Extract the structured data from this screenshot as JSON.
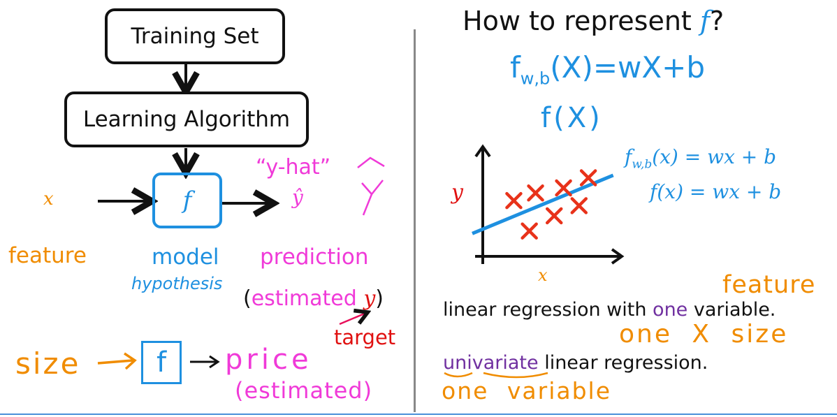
{
  "left": {
    "training_set": "Training Set",
    "learning_algorithm": "Learning Algorithm",
    "model_symbol": "f",
    "input_symbol": "x",
    "output_symbol": "ŷ",
    "y_hat_label": "“y-hat”",
    "feature_label": "feature",
    "model_label": "model",
    "hypothesis_label": "hypothesis",
    "prediction_label": "prediction",
    "estimated_open": "(",
    "estimated_word": "estimated",
    "estimated_y": "y",
    "estimated_close": ")",
    "target_label": "target",
    "size_label": "size",
    "size_f": "f",
    "price_label": "price",
    "price_estimated": "(estimated)"
  },
  "right": {
    "title_prefix": "How to represent ",
    "title_f": "f",
    "title_suffix": "?",
    "handwritten_formula": "f",
    "handwritten_sub": "w,b",
    "handwritten_rest": "(X)=wX+b",
    "handwritten_fx": "f(X)",
    "formula1_f": "f",
    "formula1_sub": "w,b",
    "formula1_rest": "(x) = wx + b",
    "formula2": "f(x) = wx + b",
    "plot_y_label": "y",
    "plot_x_label": "x",
    "feature_note": "feature",
    "linreg_pre": "linear regression with ",
    "linreg_one": "one",
    "linreg_post": " variable.",
    "one_x_size": "one X size",
    "univariate": "univariate",
    "univariate_post": " linear regression.",
    "one_variable": "one variable"
  },
  "colors": {
    "blue": "#1e90e0",
    "orange": "#f08c00",
    "magenta": "#f03ad8",
    "red": "#e01010",
    "purple": "#7030a0",
    "cross": "#e8321a"
  },
  "chart_data": {
    "type": "scatter",
    "x": [
      1.0,
      1.7,
      1.5,
      2.6,
      2.3,
      3.4,
      3.1
    ],
    "y": [
      2.2,
      2.5,
      1.0,
      2.7,
      1.6,
      3.1,
      2.0
    ],
    "fit_line": {
      "x": [
        0,
        4.2
      ],
      "y": [
        0.9,
        3.2
      ]
    },
    "xlabel": "x",
    "ylabel": "y",
    "xlim": [
      0,
      4.5
    ],
    "ylim": [
      0,
      4.3
    ],
    "grid": false
  }
}
